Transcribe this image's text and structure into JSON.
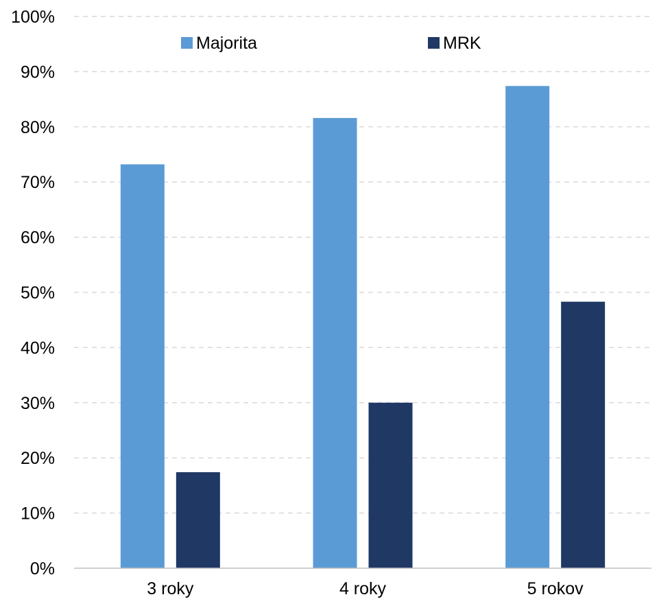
{
  "chart_data": {
    "type": "bar",
    "title": "",
    "xlabel": "",
    "ylabel": "",
    "categories": [
      "3 roky",
      "4 roky",
      "5 rokov"
    ],
    "series": [
      {
        "name": "Majorita",
        "values": [
          73.2,
          81.6,
          87.4
        ],
        "color": "#5b9bd5"
      },
      {
        "name": "MRK",
        "values": [
          17.4,
          30.0,
          48.3
        ],
        "color": "#203864"
      }
    ],
    "ylim": [
      0,
      100
    ],
    "yticks": [
      0,
      10,
      20,
      30,
      40,
      50,
      60,
      70,
      80,
      90,
      100
    ],
    "ytick_format": "percent",
    "grid": true,
    "grid_style": "dashed",
    "legend_position": "top"
  }
}
